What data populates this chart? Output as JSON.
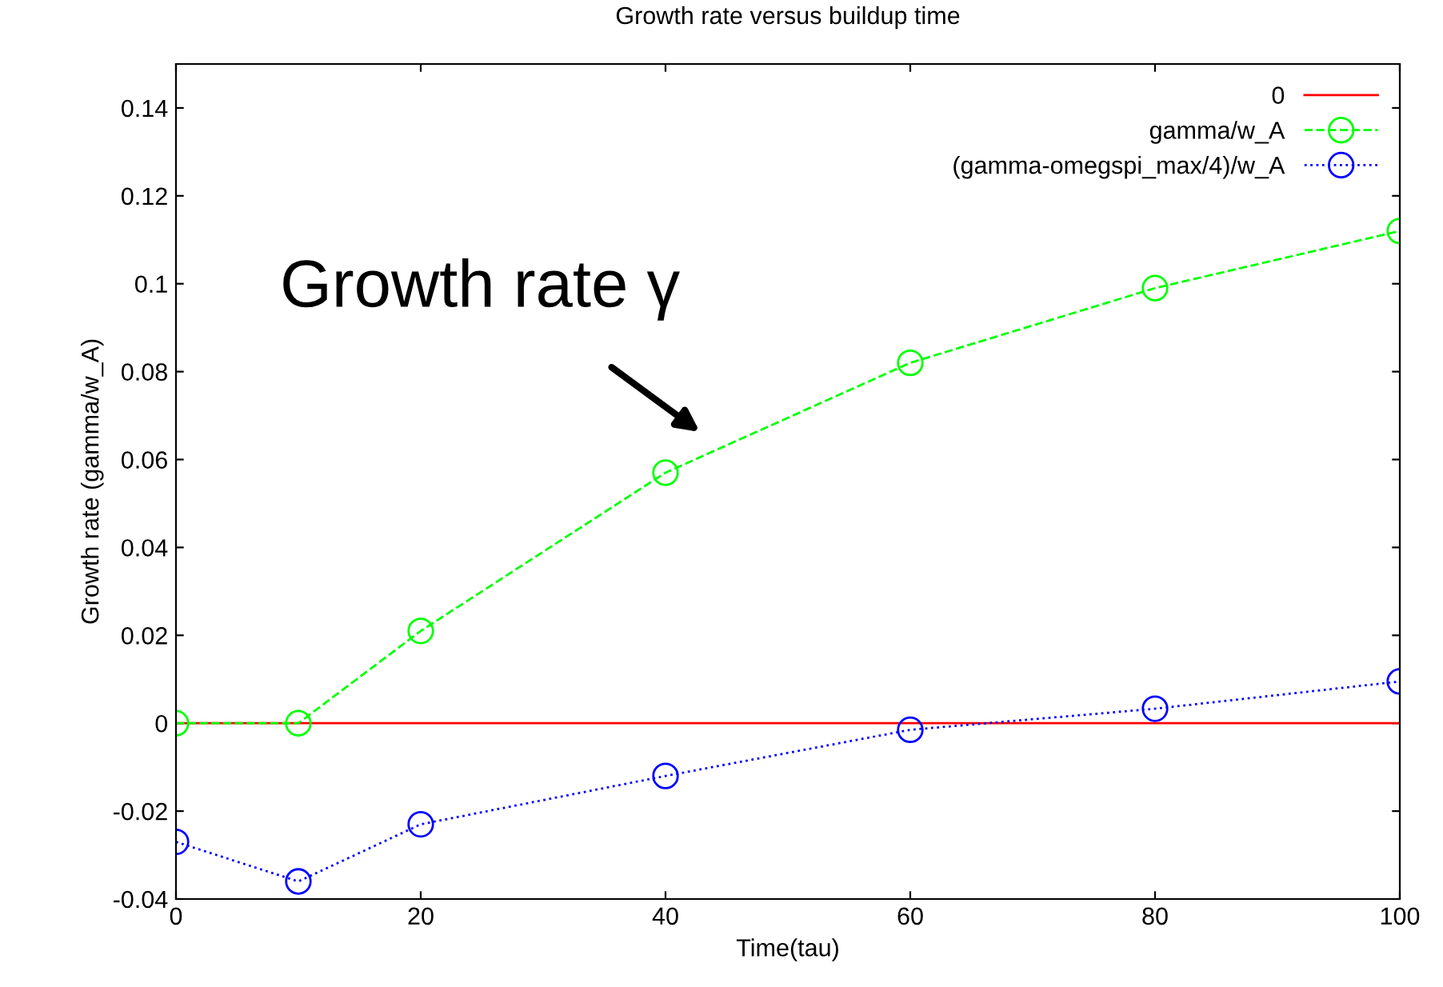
{
  "chart_data": {
    "type": "line",
    "title": "Growth rate versus buildup time",
    "xlabel": "Time(tau)",
    "ylabel": "Growth rate (gamma/w_A)",
    "x": [
      0,
      10,
      20,
      40,
      60,
      80,
      100
    ],
    "series": [
      {
        "name": "0",
        "color": "#ff0000",
        "values": [
          0,
          0,
          0,
          0,
          0,
          0,
          0
        ],
        "marker": "none",
        "line_style": "solid"
      },
      {
        "name": "gamma/w_A",
        "color": "#00ff00",
        "values": [
          0,
          0,
          0.021,
          0.057,
          0.082,
          0.099,
          0.112
        ],
        "marker": "circle",
        "line_style": "dashed"
      },
      {
        "name": "(gamma-omegspi_max/4)/w_A",
        "color": "#0000ff",
        "values": [
          -0.027,
          -0.036,
          -0.023,
          -0.012,
          -0.0015,
          0.0033,
          0.0095
        ],
        "marker": "circle",
        "line_style": "dotted"
      }
    ],
    "xlim": [
      0,
      100
    ],
    "xticks": [
      0,
      20,
      40,
      60,
      80,
      100
    ],
    "ylim": [
      -0.04,
      0.15
    ],
    "yticks": [
      -0.04,
      -0.02,
      0,
      0.02,
      0.04,
      0.06,
      0.08,
      0.1,
      0.12,
      0.14
    ],
    "grid": false,
    "legend": "top right",
    "annotations": [
      "Growth rate γ"
    ]
  }
}
